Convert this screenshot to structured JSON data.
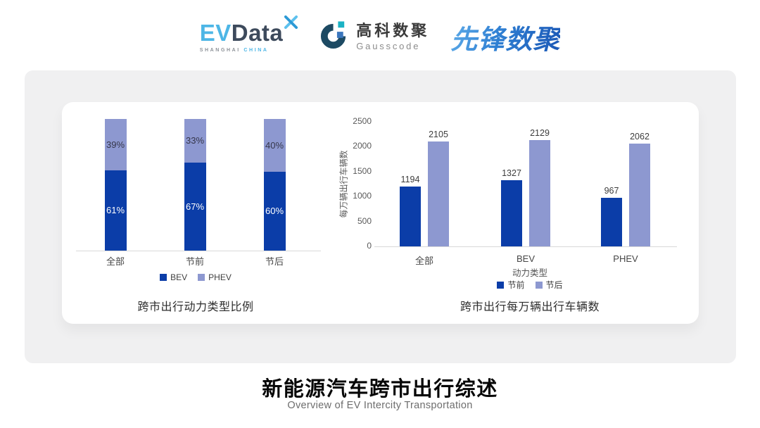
{
  "header": {
    "evdata": {
      "ev": "EV",
      "data": "Data",
      "sub_left": "SHANGHAI",
      "sub_right": "CHINA"
    },
    "gausscode": {
      "name_cn": "高科数聚",
      "name_en": "Gausscode"
    },
    "pioneer": {
      "name": "先锋数聚"
    }
  },
  "colors": {
    "series_dark_blue": "#0b3da8",
    "series_light_periwinkle": "#8d98d0",
    "card_background": "#f0f0f1",
    "panel_background": "#ffffff"
  },
  "chart_data": [
    {
      "type": "bar",
      "subtype": "stacked_percent",
      "title": "跨市出行动力类型比例",
      "categories": [
        "全部",
        "节前",
        "节后"
      ],
      "series": [
        {
          "name": "BEV",
          "color": "#0b3da8",
          "values": [
            61,
            67,
            60
          ]
        },
        {
          "name": "PHEV",
          "color": "#8d98d0",
          "values": [
            39,
            33,
            40
          ]
        }
      ],
      "value_suffix": "%",
      "ylim": [
        0,
        100
      ],
      "legend_position": "bottom",
      "grid": false
    },
    {
      "type": "bar",
      "subtype": "grouped",
      "title": "跨市出行每万辆出行车辆数",
      "xlabel": "动力类型",
      "ylabel": "每万辆出行车辆数",
      "categories": [
        "全部",
        "BEV",
        "PHEV"
      ],
      "series": [
        {
          "name": "节前",
          "color": "#0b3da8",
          "values": [
            1194,
            1327,
            967
          ]
        },
        {
          "name": "节后",
          "color": "#8d98d0",
          "values": [
            2105,
            2129,
            2062
          ]
        }
      ],
      "ylim": [
        0,
        2500
      ],
      "yticks": [
        0,
        500,
        1000,
        1500,
        2000,
        2500
      ],
      "legend_position": "bottom",
      "grid": false
    }
  ],
  "footer": {
    "title": "新能源汽车跨市出行综述",
    "subtitle": "Overview of EV Intercity Transportation"
  }
}
